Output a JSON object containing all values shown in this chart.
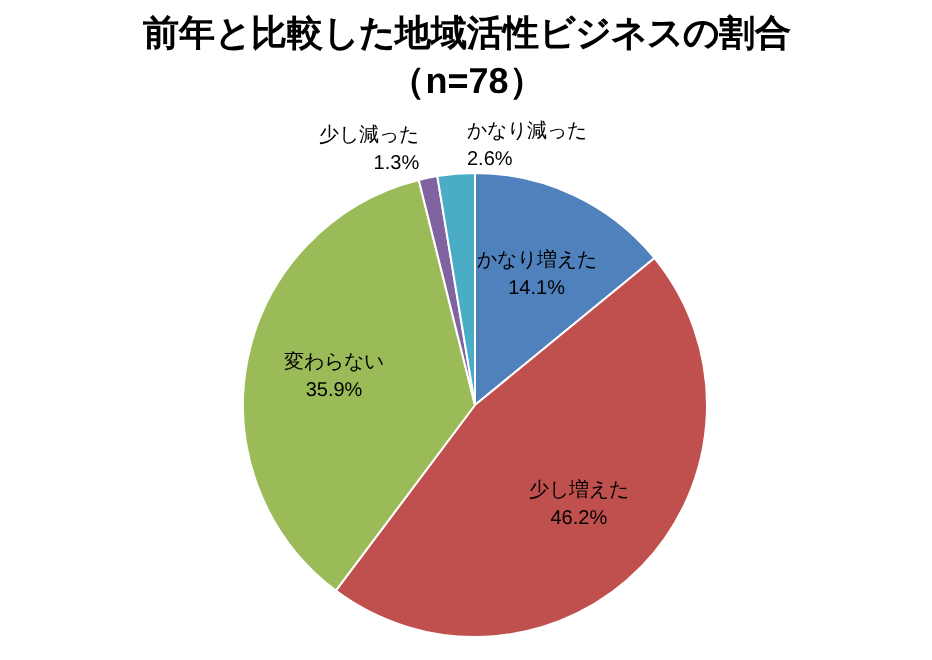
{
  "chart_data": {
    "type": "pie",
    "title": "前年と比較した地域活性ビジネスの割合",
    "subtitle": "（n=78）",
    "categories": [
      "かなり増えた",
      "少し増えた",
      "変わらない",
      "少し減った",
      "かなり減った"
    ],
    "values": [
      14.1,
      46.2,
      35.9,
      1.3,
      2.6
    ],
    "value_labels": [
      "14.1%",
      "46.2%",
      "35.9%",
      "1.3%",
      "2.6%"
    ],
    "colors": [
      "#4f81bd",
      "#c0504d",
      "#9bbb59",
      "#8064a2",
      "#4bacc6"
    ],
    "legend": false
  }
}
